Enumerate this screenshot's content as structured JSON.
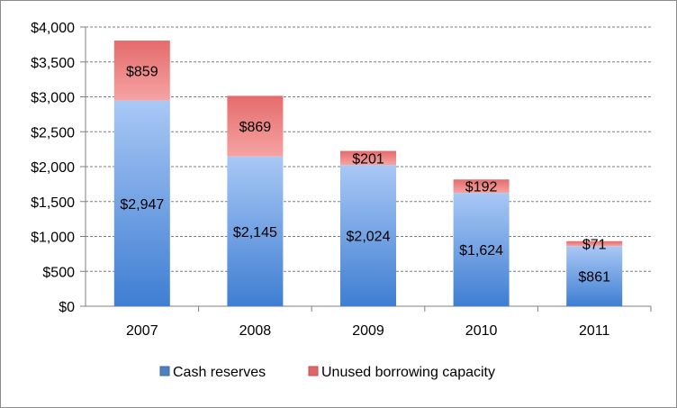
{
  "chart_data": {
    "type": "bar",
    "stacked": true,
    "categories": [
      "2007",
      "2008",
      "2009",
      "2010",
      "2011"
    ],
    "series": [
      {
        "name": "Cash reserves",
        "values": [
          2947,
          2145,
          2024,
          1624,
          861
        ],
        "labels": [
          "$2,947",
          "$2,145",
          "$2,024",
          "$1,624",
          "$861"
        ],
        "color": "#4f81bd"
      },
      {
        "name": "Unused borrowing capacity",
        "values": [
          859,
          869,
          201,
          192,
          71
        ],
        "labels": [
          "$859",
          "$869",
          "$201",
          "$192",
          "$71"
        ],
        "color": "#c0504d"
      }
    ],
    "ylim": [
      0,
      4000
    ],
    "yticks": [
      0,
      500,
      1000,
      1500,
      2000,
      2500,
      3000,
      3500,
      4000
    ],
    "ytick_labels": [
      "$0",
      "$500",
      "$1,000",
      "$1,500",
      "$2,000",
      "$2,500",
      "$3,000",
      "$3,500",
      "$4,000"
    ],
    "grid": true,
    "legend_position": "bottom"
  }
}
